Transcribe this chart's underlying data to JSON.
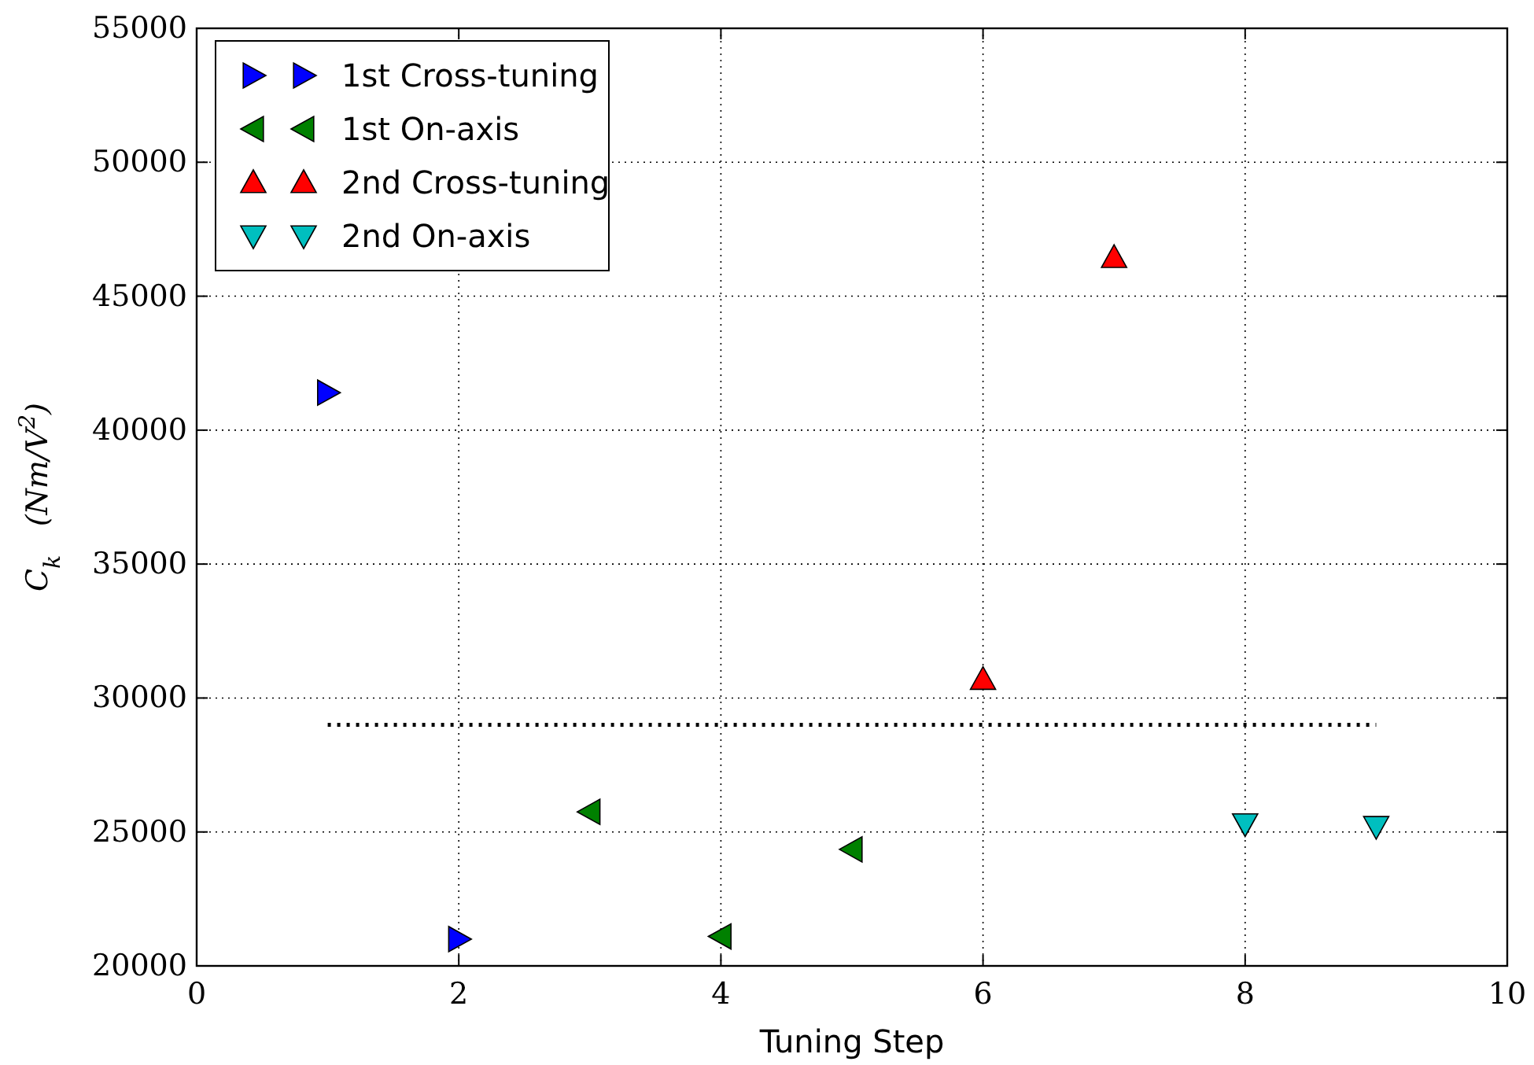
{
  "chart_data": {
    "type": "scatter",
    "xlabel": "Tuning Step",
    "ylabel": "C$_{k}$   (Nm/V$^{2}$)",
    "xlim": [
      0,
      10
    ],
    "xticks": [
      0,
      2,
      4,
      6,
      8,
      10
    ],
    "ylim": [
      20000,
      55000
    ],
    "yticks": [
      20000,
      25000,
      30000,
      35000,
      40000,
      45000,
      50000,
      55000
    ],
    "grid": true,
    "legend": "top left",
    "series": [
      {
        "name": "1st Cross-tuning",
        "color": "#0000ff",
        "marker": "triangle-right",
        "x": [
          1,
          2
        ],
        "values": [
          41400,
          21000
        ]
      },
      {
        "name": "1st On-axis",
        "color": "#008000",
        "marker": "triangle-left",
        "x": [
          3,
          4,
          5
        ],
        "values": [
          25750,
          21100,
          24350
        ]
      },
      {
        "name": "2nd Cross-tuning",
        "color": "#ff0000",
        "marker": "triangle",
        "x": [
          6,
          7
        ],
        "values": [
          30700,
          46450
        ]
      },
      {
        "name": "2nd On-axis",
        "color": "#00bfbf",
        "marker": "triangle-down",
        "x": [
          8,
          9
        ],
        "values": [
          25300,
          25200
        ]
      },
      {
        "type": "line",
        "color": "#000000",
        "line_style": "dotted",
        "marker": "none",
        "x": [
          1,
          9
        ],
        "values": [
          29000,
          29000
        ]
      }
    ]
  }
}
